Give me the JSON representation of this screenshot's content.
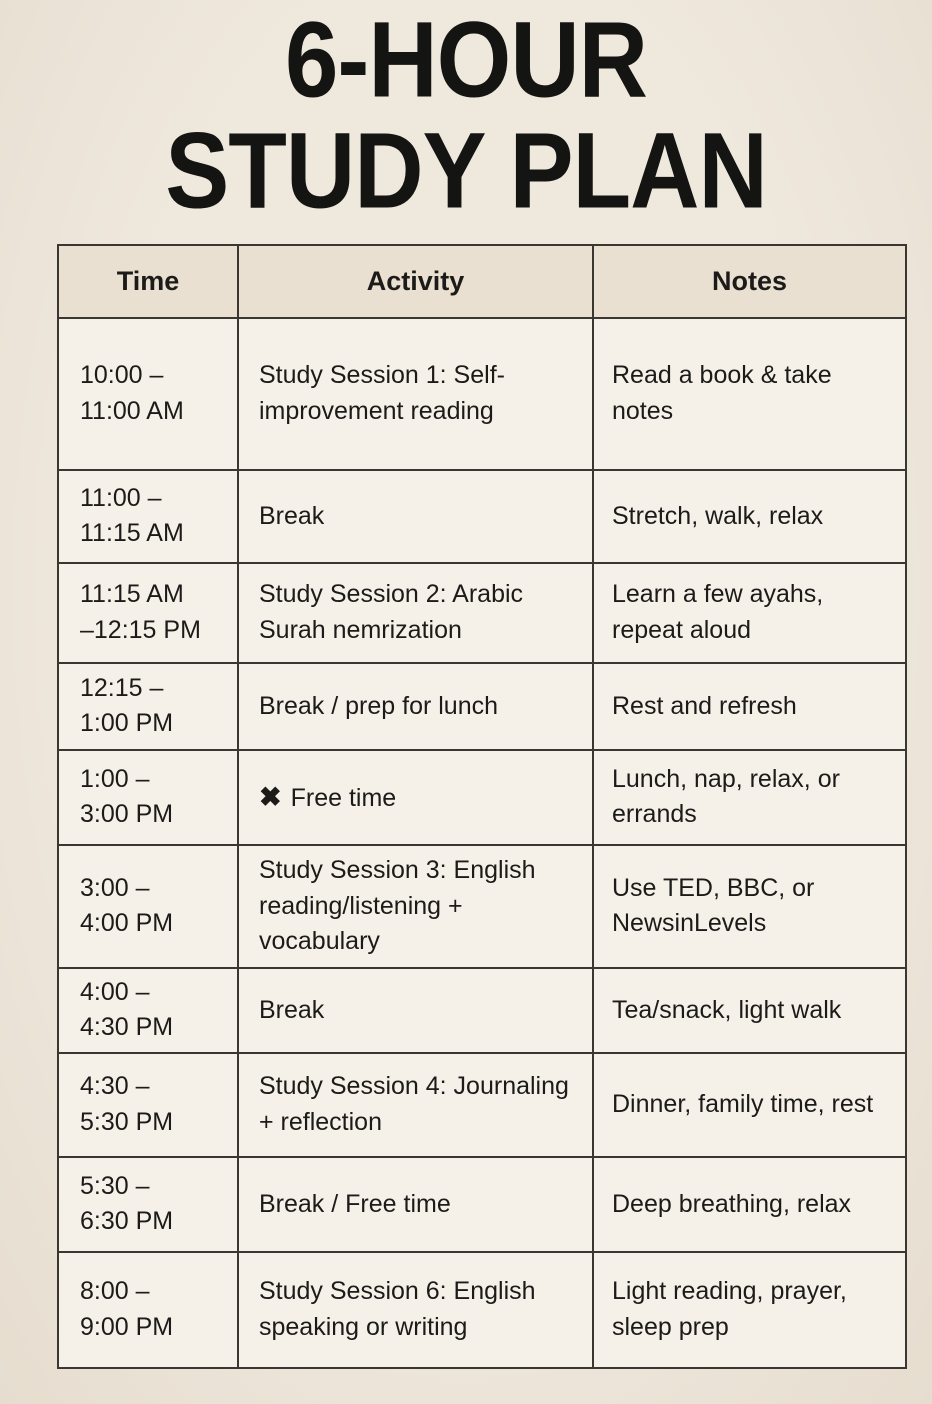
{
  "title": {
    "line1": "6-HOUR",
    "line2": "STUDY PLAN"
  },
  "colors": {
    "page_bg": "#efe8dd",
    "cell_bg": "#f6f1e8",
    "header_bg": "#eae0d1",
    "border": "#3a3733",
    "text": "#1c1b19"
  },
  "icons": {
    "cross_icon": "✖"
  },
  "table": {
    "headers": [
      "Time",
      "Activity",
      "Notes"
    ],
    "rows": [
      {
        "time": "10:00 –\n11:00 AM",
        "activity": "Study Session 1: Self-improvement reading",
        "notes": "Read a book & take notes"
      },
      {
        "time": "11:00 –\n11:15 AM",
        "activity": "Break",
        "notes": "Stretch, walk, relax"
      },
      {
        "time": "11:15 AM\n–12:15 PM",
        "activity": "Study Session 2: Arabic Surah nemrization",
        "notes": "Learn a few ayahs, repeat aloud"
      },
      {
        "time": "12:15 –\n1:00 PM",
        "activity": "Break / prep for lunch",
        "notes": "Rest and refresh"
      },
      {
        "time": "1:00 –\n3:00 PM",
        "activity_icon": "✖",
        "activity": "Free time",
        "notes": "Lunch, nap, relax, or errands"
      },
      {
        "time": "3:00 –\n4:00 PM",
        "activity": "Study Session 3: English reading/listening + vocabulary",
        "notes": "Use TED, BBC, or NewsinLevels"
      },
      {
        "time": "4:00 –\n4:30 PM",
        "activity": "Break",
        "notes": "Tea/snack, light walk"
      },
      {
        "time": "4:30 –\n5:30 PM",
        "activity": "Study Session 4: Journaling + reflection",
        "notes": "Dinner, family time, rest"
      },
      {
        "time": "5:30 –\n6:30 PM",
        "activity": "Break / Free time",
        "notes": "Deep breathing, relax"
      },
      {
        "time": "8:00 –\n9:00 PM",
        "activity": "Study Session 6: English speaking or writing",
        "notes": "Light reading, prayer, sleep prep"
      }
    ]
  }
}
